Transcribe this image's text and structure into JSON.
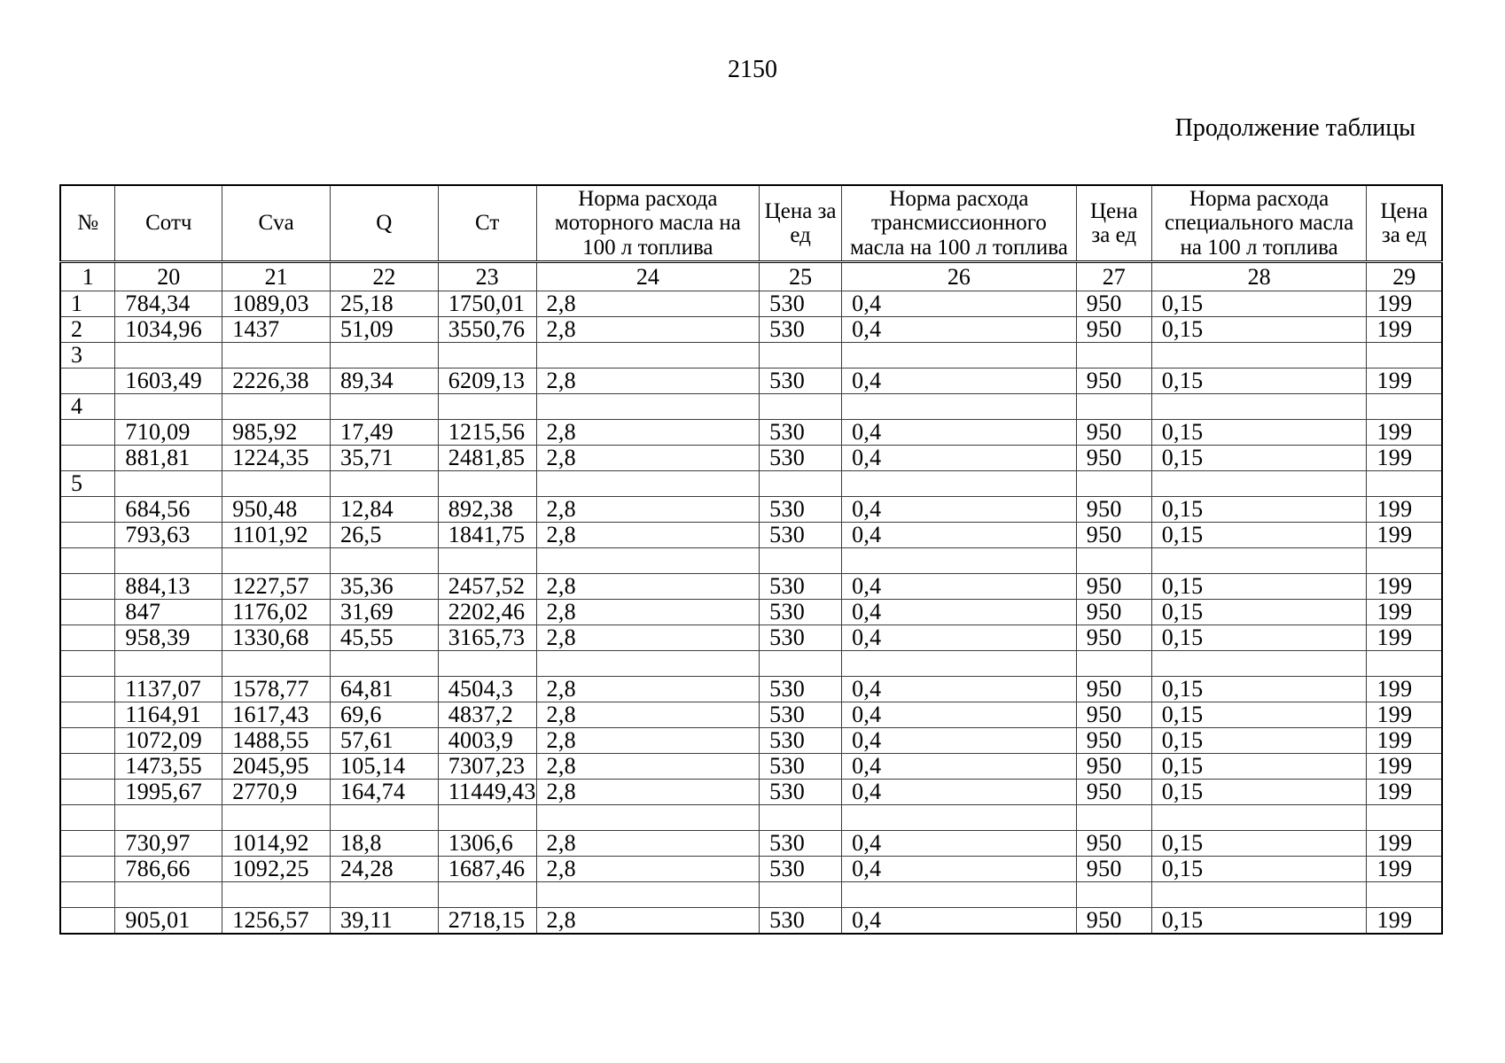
{
  "page": {
    "number": "2150",
    "caption": "Продолжение таблицы"
  },
  "table": {
    "headers": [
      "№",
      "Сотч",
      "Cva",
      "Q",
      "Ст",
      "Норма расхода моторного масла на 100 л топлива",
      "Цена за ед",
      "Норма расхода трансмиссионного масла на 100 л топлива",
      "Цена за ед",
      "Норма расхода специального масла на 100 л топлива",
      "Цена за ед"
    ],
    "column_numbers": [
      "1",
      "20",
      "21",
      "22",
      "23",
      "24",
      "25",
      "26",
      "27",
      "28",
      "29"
    ],
    "rows": [
      [
        "1",
        "784,34",
        "1089,03",
        "25,18",
        "1750,01",
        "2,8",
        "530",
        "0,4",
        "950",
        "0,15",
        "199"
      ],
      [
        "2",
        "1034,96",
        "1437",
        "51,09",
        "3550,76",
        "2,8",
        "530",
        "0,4",
        "950",
        "0,15",
        "199"
      ],
      [
        "3",
        "",
        "",
        "",
        "",
        "",
        "",
        "",
        "",
        "",
        ""
      ],
      [
        "",
        "1603,49",
        "2226,38",
        "89,34",
        "6209,13",
        "2,8",
        "530",
        "0,4",
        "950",
        "0,15",
        "199"
      ],
      [
        "4",
        "",
        "",
        "",
        "",
        "",
        "",
        "",
        "",
        "",
        ""
      ],
      [
        "",
        "710,09",
        "985,92",
        "17,49",
        "1215,56",
        "2,8",
        "530",
        "0,4",
        "950",
        "0,15",
        "199"
      ],
      [
        "",
        "881,81",
        "1224,35",
        "35,71",
        "2481,85",
        "2,8",
        "530",
        "0,4",
        "950",
        "0,15",
        "199"
      ],
      [
        "5",
        "",
        "",
        "",
        "",
        "",
        "",
        "",
        "",
        "",
        ""
      ],
      [
        "",
        "684,56",
        "950,48",
        "12,84",
        "892,38",
        "2,8",
        "530",
        "0,4",
        "950",
        "0,15",
        "199"
      ],
      [
        "",
        "793,63",
        "1101,92",
        "26,5",
        "1841,75",
        "2,8",
        "530",
        "0,4",
        "950",
        "0,15",
        "199"
      ],
      [
        "",
        "",
        "",
        "",
        "",
        "",
        "",
        "",
        "",
        "",
        ""
      ],
      [
        "",
        "884,13",
        "1227,57",
        "35,36",
        "2457,52",
        "2,8",
        "530",
        "0,4",
        "950",
        "0,15",
        "199"
      ],
      [
        "",
        "847",
        "1176,02",
        "31,69",
        "2202,46",
        "2,8",
        "530",
        "0,4",
        "950",
        "0,15",
        "199"
      ],
      [
        "",
        "958,39",
        "1330,68",
        "45,55",
        "3165,73",
        "2,8",
        "530",
        "0,4",
        "950",
        "0,15",
        "199"
      ],
      [
        "",
        "",
        "",
        "",
        "",
        "",
        "",
        "",
        "",
        "",
        ""
      ],
      [
        "",
        "1137,07",
        "1578,77",
        "64,81",
        "4504,3",
        "2,8",
        "530",
        "0,4",
        "950",
        "0,15",
        "199"
      ],
      [
        "",
        "1164,91",
        "1617,43",
        "69,6",
        "4837,2",
        "2,8",
        "530",
        "0,4",
        "950",
        "0,15",
        "199"
      ],
      [
        "",
        "1072,09",
        "1488,55",
        "57,61",
        "4003,9",
        "2,8",
        "530",
        "0,4",
        "950",
        "0,15",
        "199"
      ],
      [
        "",
        "1473,55",
        "2045,95",
        "105,14",
        "7307,23",
        "2,8",
        "530",
        "0,4",
        "950",
        "0,15",
        "199"
      ],
      [
        "",
        "1995,67",
        "2770,9",
        "164,74",
        "11449,43",
        "2,8",
        "530",
        "0,4",
        "950",
        "0,15",
        "199"
      ],
      [
        "",
        "",
        "",
        "",
        "",
        "",
        "",
        "",
        "",
        "",
        ""
      ],
      [
        "",
        "730,97",
        "1014,92",
        "18,8",
        "1306,6",
        "2,8",
        "530",
        "0,4",
        "950",
        "0,15",
        "199"
      ],
      [
        "",
        "786,66",
        "1092,25",
        "24,28",
        "1687,46",
        "2,8",
        "530",
        "0,4",
        "950",
        "0,15",
        "199"
      ],
      [
        "",
        "",
        "",
        "",
        "",
        "",
        "",
        "",
        "",
        "",
        ""
      ],
      [
        "",
        "905,01",
        "1256,57",
        "39,11",
        "2718,15",
        "2,8",
        "530",
        "0,4",
        "950",
        "0,15",
        "199"
      ]
    ]
  }
}
